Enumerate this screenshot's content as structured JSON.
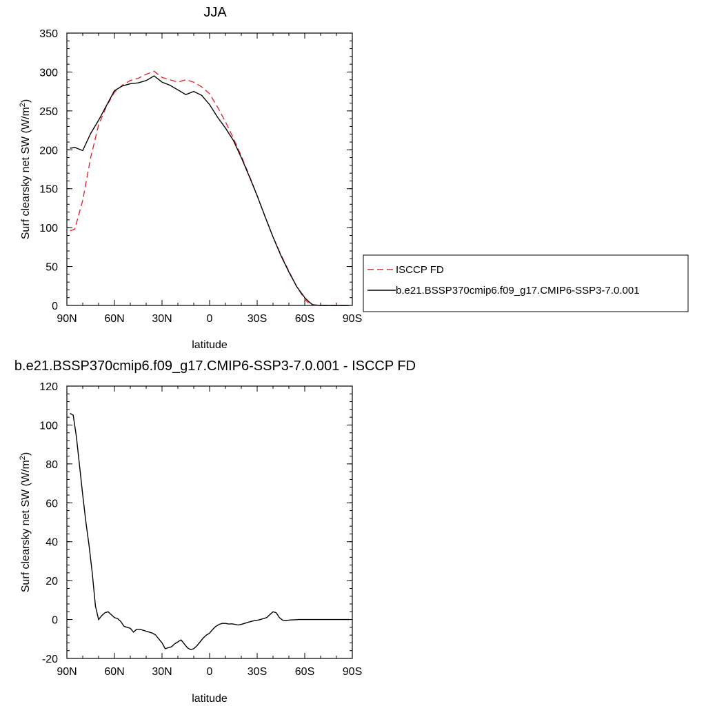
{
  "chart_data": [
    {
      "type": "line",
      "title": "JJA",
      "xlabel": "latitude",
      "ylabel": "Surf clearsky net SW (W/m²)",
      "ylabel_prefix": "Surf clearsky net SW (W/m",
      "ylabel_sup": "2",
      "ylabel_suffix": ")",
      "xlim": [
        90,
        -90
      ],
      "ylim": [
        0,
        350
      ],
      "xticks": [
        90,
        60,
        30,
        0,
        -30,
        -60,
        -90
      ],
      "xticklabels": [
        "90N",
        "60N",
        "30N",
        "0",
        "30S",
        "60S",
        "90S"
      ],
      "yticks": [
        0,
        50,
        100,
        150,
        200,
        250,
        300,
        350
      ],
      "yticklabels": [
        "0",
        "50",
        "100",
        "150",
        "200",
        "250",
        "300",
        "350"
      ],
      "legend": "right",
      "series": [
        {
          "name": "ISCCP FD",
          "color": "#e8242b",
          "dash": "dashed",
          "x": [
            88,
            85,
            80,
            75,
            70,
            65,
            60,
            55,
            50,
            45,
            40,
            35,
            30,
            25,
            20,
            15,
            10,
            5,
            0,
            -5,
            -10,
            -15,
            -20,
            -25,
            -30,
            -35,
            -40,
            -45,
            -50,
            -55,
            -60,
            -63,
            -65,
            -68,
            -70,
            -75,
            -80,
            -85,
            -88
          ],
          "y": [
            96,
            98,
            135,
            190,
            232,
            256,
            274,
            283,
            289,
            292,
            297,
            301,
            293,
            290,
            287,
            290,
            287,
            281,
            272,
            255,
            236,
            215,
            192,
            167,
            141,
            114,
            88,
            65,
            44,
            24,
            8,
            2,
            0.5,
            0.2,
            0,
            0,
            0,
            0,
            0
          ]
        },
        {
          "name": "b.e21.BSSP370cmip6.f09_g17.CMIP6-SSP3-7.0.001",
          "color": "#000000",
          "dash": "solid",
          "x": [
            88,
            85,
            80,
            75,
            70,
            65,
            60,
            55,
            50,
            45,
            40,
            35,
            30,
            25,
            20,
            15,
            10,
            5,
            0,
            -5,
            -10,
            -15,
            -20,
            -25,
            -30,
            -35,
            -40,
            -45,
            -50,
            -55,
            -60,
            -63,
            -65,
            -68,
            -70,
            -75,
            -80,
            -85,
            -88
          ],
          "y": [
            202,
            203,
            199,
            221,
            238,
            257,
            276,
            282,
            285,
            286,
            289,
            295,
            287,
            283,
            277,
            271,
            275,
            270,
            258,
            242,
            228,
            212,
            190,
            166,
            141,
            114,
            88,
            64,
            43,
            24,
            10,
            4,
            1,
            0.3,
            0,
            0,
            0,
            0,
            0
          ]
        }
      ]
    },
    {
      "type": "line",
      "title": "b.e21.BSSP370cmip6.f09_g17.CMIP6-SSP3-7.0.001 - ISCCP FD",
      "xlabel": "latitude",
      "ylabel": "Surf clearsky net SW (W/m²)",
      "ylabel_prefix": "Surf clearsky net SW (W/m",
      "ylabel_sup": "2",
      "ylabel_suffix": ")",
      "xlim": [
        90,
        -90
      ],
      "ylim": [
        -20,
        120
      ],
      "xticks": [
        90,
        60,
        30,
        0,
        -30,
        -60,
        -90
      ],
      "xticklabels": [
        "90N",
        "60N",
        "30N",
        "0",
        "30S",
        "60S",
        "90S"
      ],
      "yticks": [
        -20,
        0,
        20,
        40,
        60,
        80,
        100,
        120
      ],
      "yticklabels": [
        "-20",
        "0",
        "20",
        "40",
        "60",
        "80",
        "100",
        "120"
      ],
      "series": [
        {
          "color": "#000000",
          "dash": "solid",
          "x": [
            88,
            86,
            84,
            82,
            80,
            78,
            76,
            74,
            72,
            70,
            68,
            66,
            64,
            62,
            60,
            58,
            56,
            54,
            52,
            50,
            48,
            46,
            44,
            42,
            40,
            38,
            36,
            34,
            32,
            30,
            28,
            26,
            24,
            22,
            20,
            18,
            16,
            14,
            12,
            10,
            8,
            6,
            4,
            2,
            0,
            -2,
            -4,
            -6,
            -8,
            -10,
            -12,
            -14,
            -16,
            -18,
            -20,
            -22,
            -24,
            -26,
            -28,
            -30,
            -32,
            -34,
            -36,
            -38,
            -40,
            -42,
            -44,
            -46,
            -48,
            -50,
            -52,
            -54,
            -56,
            -58,
            -60,
            -62,
            -64,
            -66,
            -68,
            -70,
            -72,
            -74,
            -76,
            -78,
            -80,
            -82,
            -84,
            -86,
            -88
          ],
          "y": [
            106,
            105,
            94,
            79,
            64,
            50,
            38,
            24,
            7,
            0,
            2,
            3.5,
            4,
            2.5,
            1,
            0.5,
            -1,
            -3.5,
            -4,
            -4.5,
            -6.5,
            -5,
            -5,
            -5.5,
            -6,
            -6.5,
            -7,
            -8,
            -10,
            -12,
            -15,
            -14.5,
            -14,
            -12.5,
            -11.5,
            -10.5,
            -12.5,
            -14.5,
            -15.5,
            -15,
            -13.5,
            -11.5,
            -9.5,
            -8,
            -7,
            -5,
            -3.5,
            -2.5,
            -2,
            -2,
            -2.3,
            -2.2,
            -2.5,
            -2.8,
            -2.5,
            -2,
            -1.5,
            -1,
            -0.6,
            -0.4,
            0,
            0.5,
            1,
            2.5,
            4,
            3.5,
            1,
            -0.3,
            -0.5,
            -0.3,
            -0.2,
            -0.1,
            0,
            0,
            0,
            0,
            0,
            0,
            0,
            0,
            0,
            0,
            0,
            0,
            0,
            0,
            0,
            0,
            0
          ]
        }
      ]
    }
  ]
}
